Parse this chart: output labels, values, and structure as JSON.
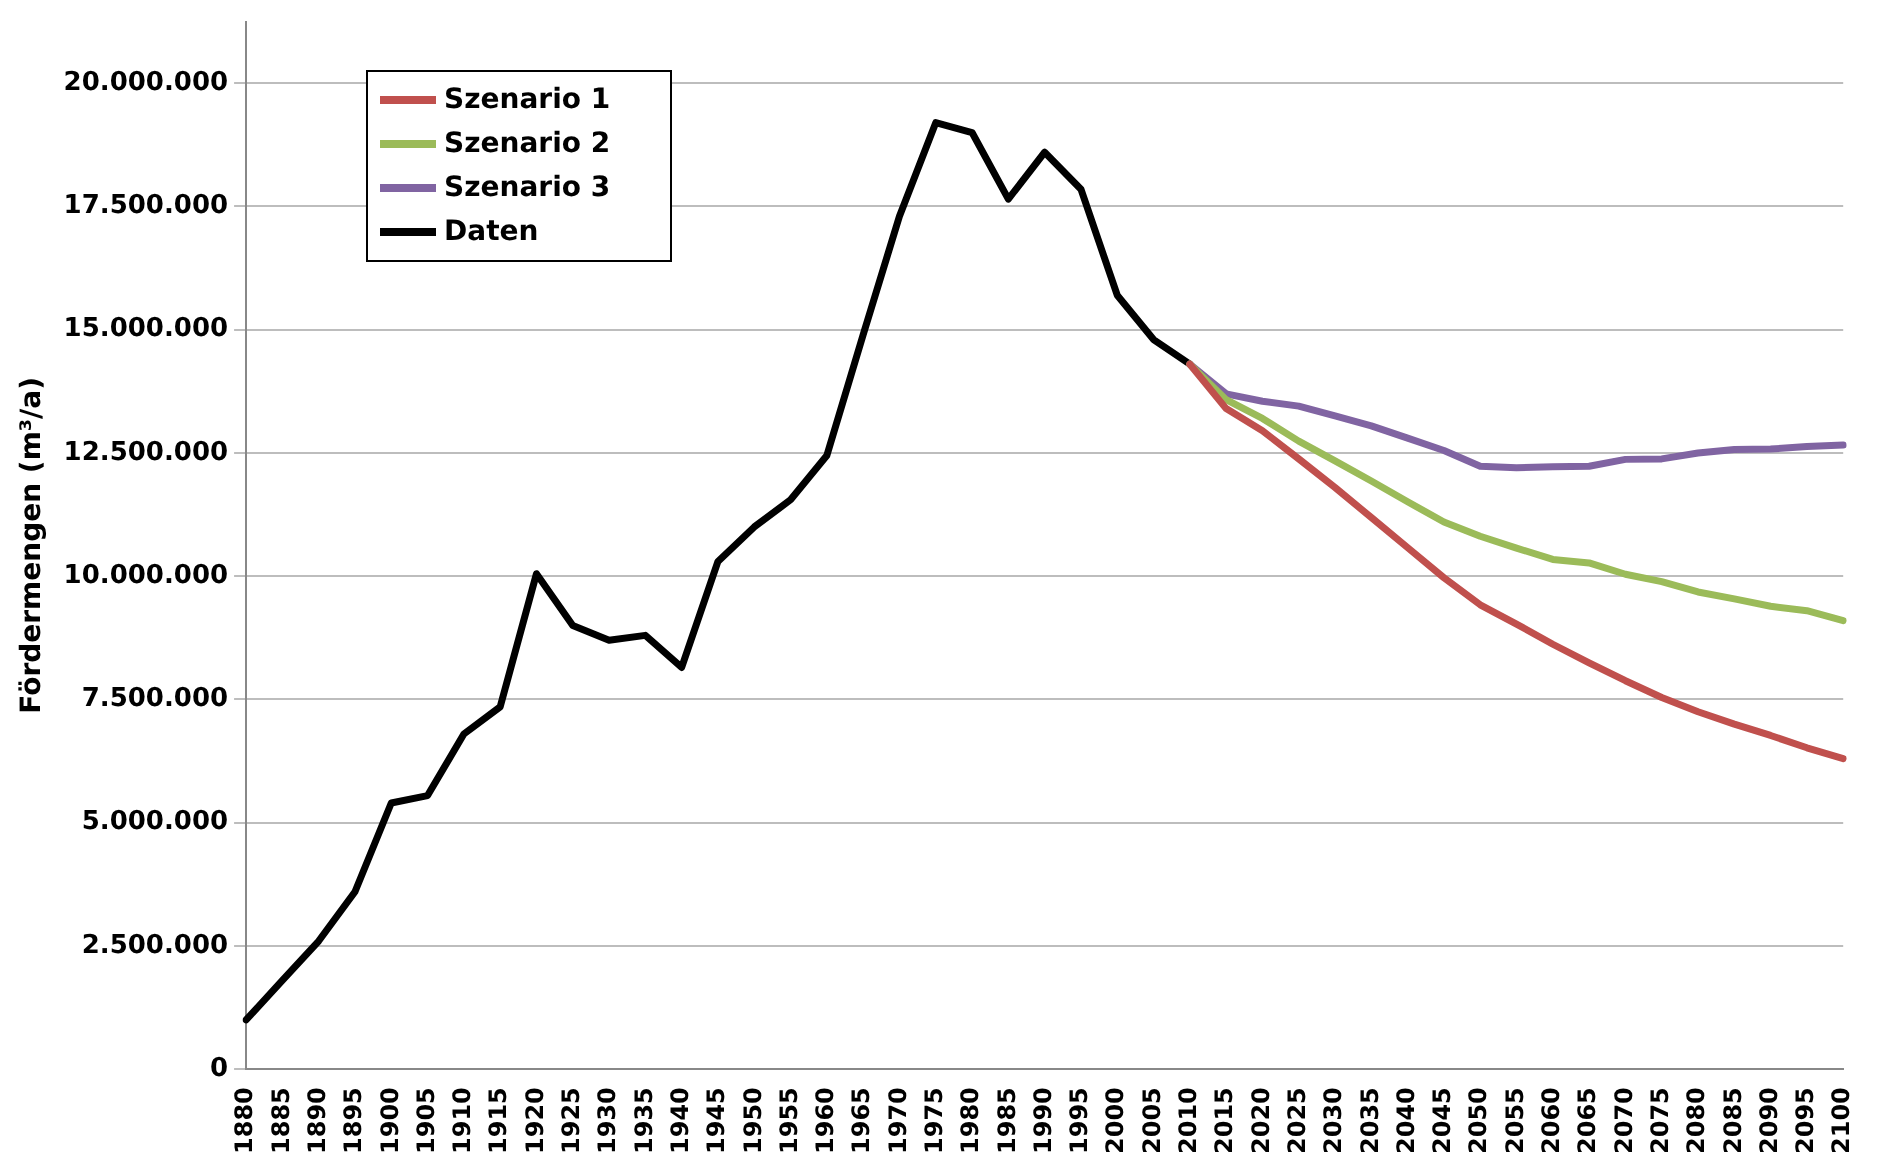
{
  "chart_data": {
    "type": "line",
    "ylabel": "Fördermengen (m³/a)",
    "categories": [
      "1880",
      "1885",
      "1890",
      "1895",
      "1900",
      "1905",
      "1910",
      "1915",
      "1920",
      "1925",
      "1930",
      "1935",
      "1940",
      "1945",
      "1950",
      "1955",
      "1960",
      "1965",
      "1970",
      "1975",
      "1980",
      "1985",
      "1990",
      "1995",
      "2000",
      "2005",
      "2010",
      "2015",
      "2020",
      "2025",
      "2030",
      "2035",
      "2040",
      "2045",
      "2050",
      "2055",
      "2060",
      "2065",
      "2070",
      "2075",
      "2080",
      "2085",
      "2090",
      "2095",
      "2100"
    ],
    "series": [
      {
        "name": "Szenario 1",
        "color": "#c0504d",
        "values": [
          null,
          null,
          null,
          null,
          null,
          null,
          null,
          null,
          null,
          null,
          null,
          null,
          null,
          null,
          null,
          null,
          null,
          null,
          null,
          null,
          null,
          null,
          null,
          null,
          null,
          null,
          14300000,
          13400000,
          12950000,
          12380000,
          11800000,
          11190000,
          10580000,
          9970000,
          9420000,
          9030000,
          8620000,
          8240000,
          7880000,
          7540000,
          7250000,
          7000000,
          6770000,
          6520000,
          6300000
        ]
      },
      {
        "name": "Szenario 2",
        "color": "#9bbb59",
        "values": [
          null,
          null,
          null,
          null,
          null,
          null,
          null,
          null,
          null,
          null,
          null,
          null,
          null,
          null,
          null,
          null,
          null,
          null,
          null,
          null,
          null,
          null,
          null,
          null,
          null,
          null,
          14300000,
          13580000,
          13200000,
          12740000,
          12340000,
          11930000,
          11510000,
          11100000,
          10810000,
          10570000,
          10340000,
          10270000,
          10040000,
          9890000,
          9680000,
          9540000,
          9390000,
          9300000,
          9100000
        ]
      },
      {
        "name": "Szenario 3",
        "color": "#8064a2",
        "values": [
          null,
          null,
          null,
          null,
          null,
          null,
          null,
          null,
          null,
          null,
          null,
          null,
          null,
          null,
          null,
          null,
          null,
          null,
          null,
          null,
          null,
          null,
          null,
          null,
          null,
          null,
          14300000,
          13700000,
          13550000,
          13450000,
          13250000,
          13050000,
          12800000,
          12550000,
          12230000,
          12200000,
          12220000,
          12230000,
          12370000,
          12380000,
          12500000,
          12570000,
          12580000,
          12630000,
          12660000
        ]
      },
      {
        "name": "Daten",
        "color": "#000000",
        "values": [
          1000000,
          1800000,
          2600000,
          3600000,
          5400000,
          5550000,
          6800000,
          7350000,
          10050000,
          9000000,
          8700000,
          8800000,
          8150000,
          10300000,
          11000000,
          11550000,
          12450000,
          14900000,
          17300000,
          19200000,
          19000000,
          17650000,
          18600000,
          17850000,
          15700000,
          14800000,
          14300000,
          null,
          null,
          null,
          null,
          null,
          null,
          null,
          null,
          null,
          null,
          null,
          null,
          null,
          null,
          null,
          null,
          null,
          null
        ]
      }
    ],
    "ylim": [
      0,
      21250000
    ],
    "yticks": [
      {
        "value": 0,
        "label": "0"
      },
      {
        "value": 2500000,
        "label": "2.500.000"
      },
      {
        "value": 5000000,
        "label": "5.000.000"
      },
      {
        "value": 7500000,
        "label": "7.500.000"
      },
      {
        "value": 10000000,
        "label": "10.000.000"
      },
      {
        "value": 12500000,
        "label": "12.500.000"
      },
      {
        "value": 15000000,
        "label": "15.000.000"
      },
      {
        "value": 17500000,
        "label": "17.500.000"
      },
      {
        "value": 20000000,
        "label": "20.000.000"
      }
    ],
    "grid": "y",
    "legend": "top left",
    "marker": "none",
    "line_style": "solid"
  }
}
